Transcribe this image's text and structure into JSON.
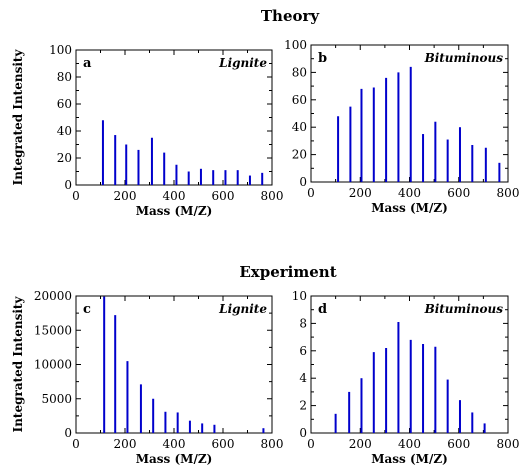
{
  "headings": {
    "theory": "Theory",
    "experiment": "Experiment"
  },
  "colors": {
    "bar": "#0000cc",
    "axis": "#000000"
  },
  "chart_data": [
    {
      "type": "bar",
      "panel": "a",
      "label": "Lignite",
      "xlabel": "Mass (M/Z)",
      "ylabel": "Integrated Intensity",
      "xlim": [
        0,
        800
      ],
      "ylim": [
        0,
        100
      ],
      "xticks": [
        0,
        200,
        400,
        600,
        800
      ],
      "yticks": [
        0,
        20,
        40,
        60,
        80,
        100
      ],
      "points": [
        [
          110,
          48
        ],
        [
          160,
          37
        ],
        [
          205,
          30
        ],
        [
          255,
          26
        ],
        [
          310,
          35
        ],
        [
          360,
          24
        ],
        [
          410,
          15
        ],
        [
          460,
          10
        ],
        [
          510,
          12
        ],
        [
          560,
          11
        ],
        [
          610,
          11
        ],
        [
          660,
          11
        ],
        [
          710,
          7
        ],
        [
          760,
          9
        ]
      ]
    },
    {
      "type": "bar",
      "panel": "b",
      "label": "Bituminous",
      "xlabel": "Mass (M/Z)",
      "ylabel": "",
      "xlim": [
        0,
        800
      ],
      "ylim": [
        0,
        100
      ],
      "xticks": [
        0,
        200,
        400,
        600,
        800
      ],
      "yticks": [
        0,
        20,
        40,
        60,
        80,
        100
      ],
      "points": [
        [
          110,
          48
        ],
        [
          160,
          55
        ],
        [
          205,
          68
        ],
        [
          255,
          69
        ],
        [
          305,
          76
        ],
        [
          355,
          80
        ],
        [
          405,
          84
        ],
        [
          455,
          35
        ],
        [
          505,
          44
        ],
        [
          555,
          31
        ],
        [
          605,
          40
        ],
        [
          655,
          27
        ],
        [
          710,
          25
        ],
        [
          765,
          14
        ]
      ]
    },
    {
      "type": "bar",
      "panel": "c",
      "label": "Lignite",
      "xlabel": "Mass (M/Z)",
      "ylabel": "Integrated Intensity",
      "xlim": [
        0,
        800
      ],
      "ylim": [
        0,
        20000
      ],
      "xticks": [
        0,
        200,
        400,
        600,
        800
      ],
      "yticks": [
        0,
        5000,
        10000,
        15000,
        20000
      ],
      "points": [
        [
          115,
          19900
        ],
        [
          160,
          17200
        ],
        [
          210,
          10500
        ],
        [
          265,
          7100
        ],
        [
          315,
          5000
        ],
        [
          365,
          3100
        ],
        [
          415,
          3000
        ],
        [
          465,
          1800
        ],
        [
          515,
          1400
        ],
        [
          565,
          1200
        ],
        [
          765,
          700
        ]
      ]
    },
    {
      "type": "bar",
      "panel": "d",
      "label": "Bituminous",
      "xlabel": "Mass (M/Z)",
      "ylabel": "",
      "xlim": [
        0,
        800
      ],
      "ylim": [
        0,
        10
      ],
      "xticks": [
        0,
        200,
        400,
        600,
        800
      ],
      "yticks": [
        0,
        2,
        4,
        6,
        8,
        10
      ],
      "points": [
        [
          100,
          1.4
        ],
        [
          155,
          3.0
        ],
        [
          205,
          4.0
        ],
        [
          255,
          5.9
        ],
        [
          305,
          6.2
        ],
        [
          355,
          8.1
        ],
        [
          405,
          6.8
        ],
        [
          455,
          6.5
        ],
        [
          505,
          6.3
        ],
        [
          555,
          3.9
        ],
        [
          605,
          2.4
        ],
        [
          655,
          1.5
        ],
        [
          705,
          0.7
        ]
      ]
    }
  ]
}
